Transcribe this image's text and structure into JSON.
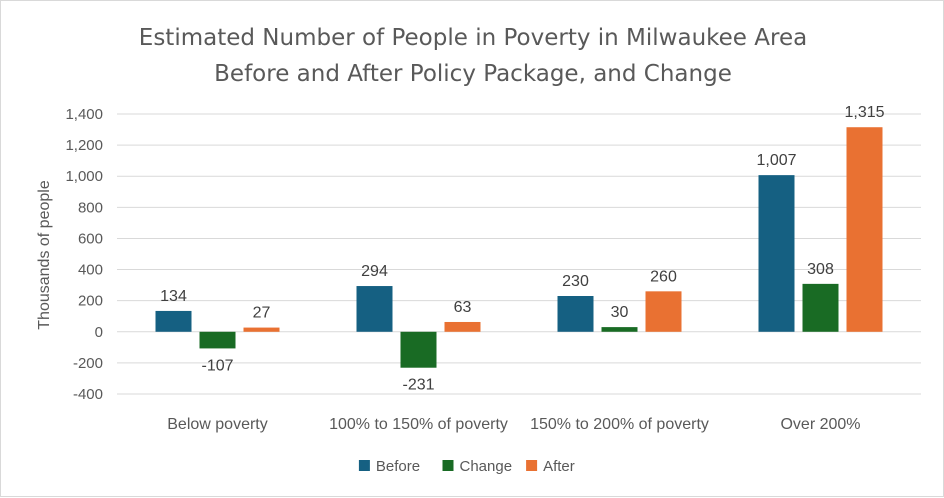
{
  "chart_data": {
    "type": "bar",
    "title": "Estimated Number of People in Poverty in Milwaukee Area",
    "subtitle": "Before and After Policy Package, and Change",
    "xlabel": "",
    "ylabel": "Thousands of people",
    "ylim": [
      -400,
      1400
    ],
    "yticks": [
      -400,
      -200,
      0,
      200,
      400,
      600,
      800,
      1000,
      1200,
      1400
    ],
    "ytick_labels": [
      "-400",
      "-200",
      "0",
      "200",
      "400",
      "600",
      "800",
      "1,000",
      "1,200",
      "1,400"
    ],
    "grid": true,
    "legend_position": "bottom",
    "categories": [
      "Below poverty",
      "100% to 150% of poverty",
      "150% to 200% of poverty",
      "Over 200%"
    ],
    "series": [
      {
        "name": "Before",
        "color": "#156082",
        "values": [
          134,
          294,
          230,
          1007
        ],
        "labels": [
          "134",
          "294",
          "230",
          "1,007"
        ]
      },
      {
        "name": "Change",
        "color": "#196B24",
        "values": [
          -107,
          -231,
          30,
          308
        ],
        "labels": [
          "-107",
          "-231",
          "30",
          "308"
        ]
      },
      {
        "name": "After",
        "color": "#E97132",
        "values": [
          27,
          63,
          260,
          1315
        ],
        "labels": [
          "27",
          "63",
          "260",
          "1,315"
        ]
      }
    ]
  }
}
